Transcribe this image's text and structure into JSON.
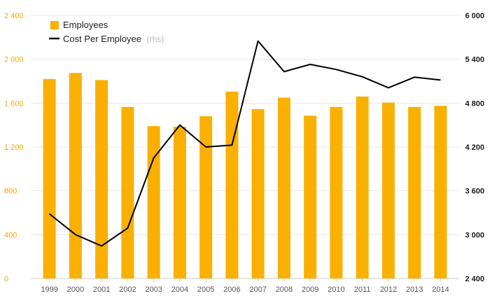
{
  "chart_data": {
    "type": "bar",
    "categories": [
      "1999",
      "2000",
      "2001",
      "2002",
      "2003",
      "2004",
      "2005",
      "2006",
      "2007",
      "2008",
      "2009",
      "2010",
      "2011",
      "2012",
      "2013",
      "2014"
    ],
    "series": [
      {
        "name": "Employees",
        "type": "bar",
        "axis": "left",
        "color": "#fab000",
        "values": [
          1820,
          1875,
          1810,
          1565,
          1390,
          1385,
          1480,
          1705,
          1545,
          1650,
          1485,
          1565,
          1660,
          1605,
          1565,
          1575
        ]
      },
      {
        "name": "Cost Per Employee",
        "name_suffix": "(rhs)",
        "type": "line",
        "axis": "right",
        "color": "#000000",
        "values": [
          3285,
          3000,
          2845,
          3090,
          4050,
          4500,
          4200,
          4225,
          5650,
          5230,
          5330,
          5260,
          5160,
          5010,
          5155,
          5115
        ]
      }
    ],
    "y_left": {
      "ylim": [
        0,
        2400
      ],
      "ticks": [
        0,
        400,
        800,
        1200,
        1600,
        2000,
        2400
      ],
      "tick_labels": [
        "0",
        "400",
        "800",
        "1 200",
        "1 600",
        "2 000",
        "2 400"
      ],
      "color": "#f5a800"
    },
    "y_right": {
      "ylim": [
        2400,
        6000
      ],
      "ticks": [
        2400,
        3000,
        3600,
        4200,
        4800,
        5400,
        6000
      ],
      "tick_labels": [
        "2 400",
        "3 000",
        "3 600",
        "4 200",
        "4 800",
        "5 400",
        "6 000"
      ],
      "color": "#1a1a1a"
    },
    "title": "",
    "xlabel": "",
    "ylabel": "",
    "grid": true,
    "legend": "top-left"
  }
}
